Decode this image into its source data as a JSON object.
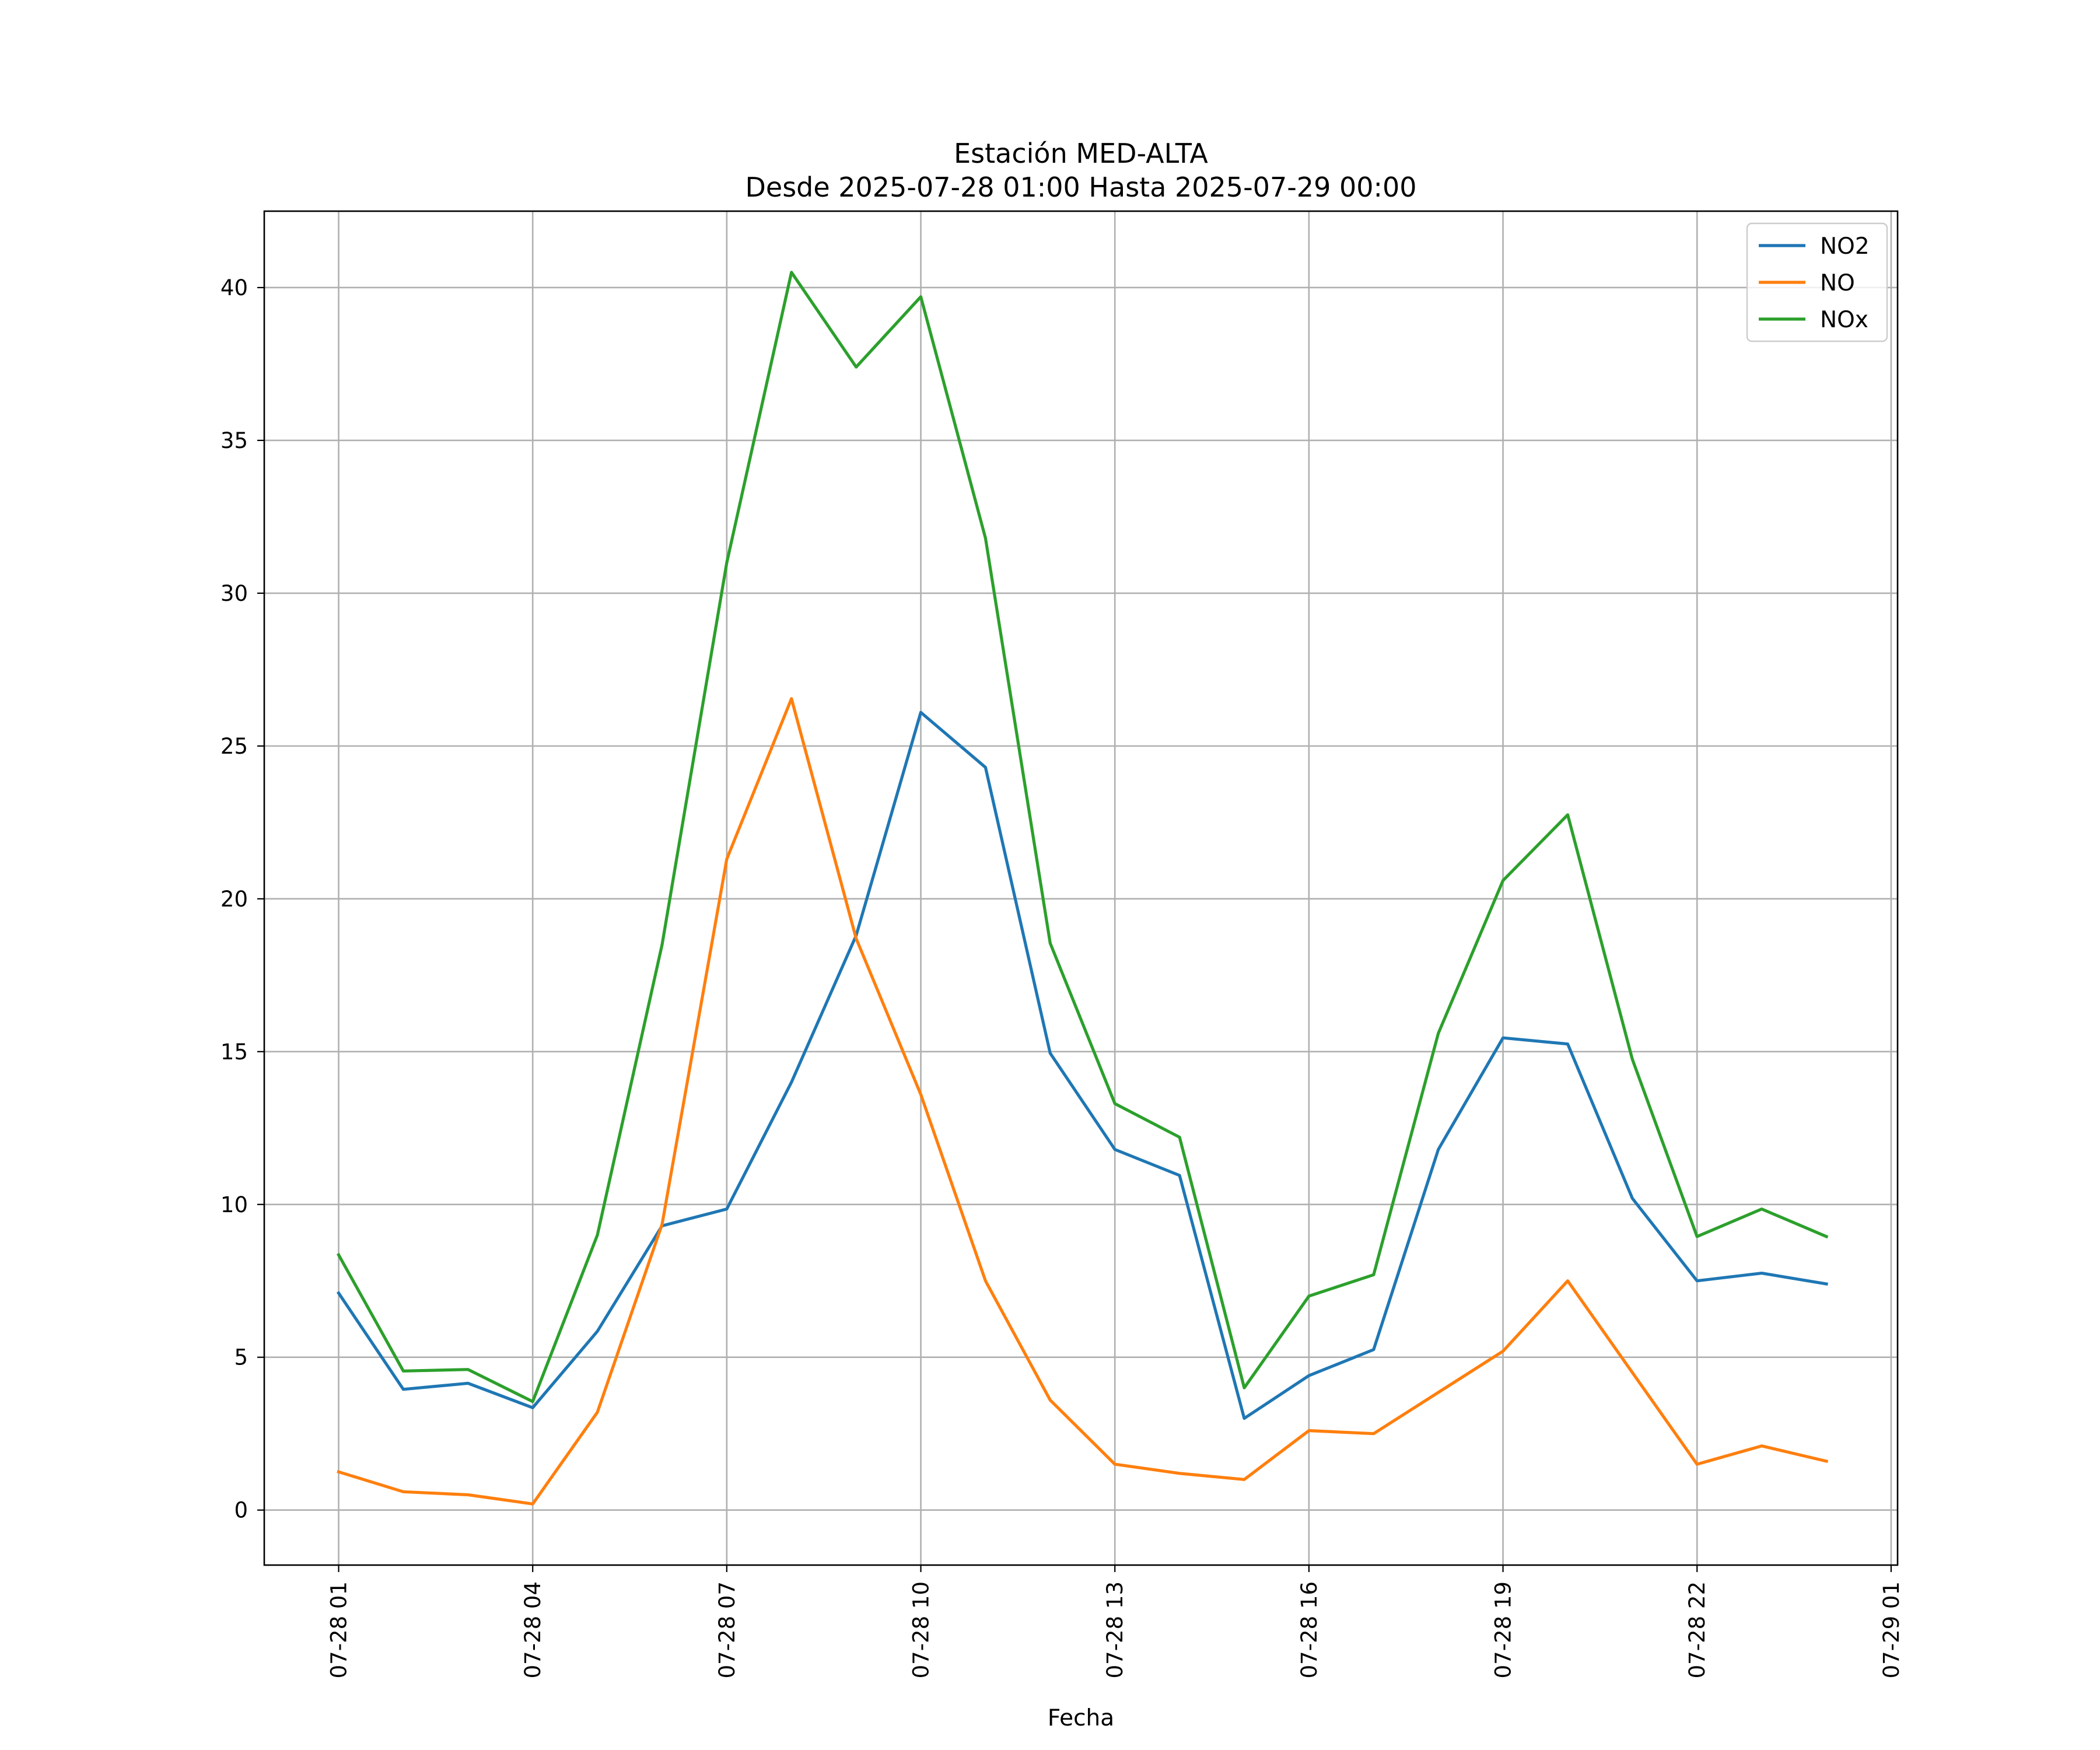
{
  "chart_data": {
    "type": "line",
    "title": "Estación MED-ALTA",
    "subtitle": "Desde 2025-07-28 01:00 Hasta 2025-07-29 00:00",
    "xlabel": "Fecha",
    "ylabel": "",
    "x_tick_labels": [
      "07-28 01",
      "07-28 04",
      "07-28 07",
      "07-28 10",
      "07-28 13",
      "07-28 16",
      "07-28 19",
      "07-28 22",
      "07-29 01"
    ],
    "y_tick_values": [
      0,
      5,
      10,
      15,
      20,
      25,
      30,
      35,
      40
    ],
    "x_hours": [
      1,
      2,
      3,
      4,
      5,
      6,
      7,
      8,
      9,
      10,
      11,
      12,
      13,
      14,
      15,
      16,
      17,
      18,
      19,
      20,
      21,
      22,
      23,
      24
    ],
    "xlim_hours": [
      -0.15,
      25.1
    ],
    "ylim": [
      -1.8,
      42.5
    ],
    "grid": true,
    "legend_position": "top-right",
    "series": [
      {
        "name": "NO2",
        "color": "#1f77b4",
        "values": [
          7.1,
          3.95,
          4.15,
          3.35,
          5.85,
          9.3,
          9.85,
          14.0,
          18.8,
          26.1,
          24.3,
          14.95,
          11.8,
          10.95,
          3.0,
          4.4,
          5.25,
          11.8,
          15.45,
          15.25,
          10.2,
          7.5,
          7.75,
          7.4
        ]
      },
      {
        "name": "NO",
        "color": "#ff7f0e",
        "values": [
          1.25,
          0.6,
          0.5,
          0.2,
          3.2,
          9.35,
          21.3,
          26.55,
          18.7,
          13.6,
          7.5,
          3.6,
          1.5,
          1.2,
          1.0,
          2.6,
          2.5,
          3.85,
          5.2,
          7.5,
          4.5,
          1.5,
          2.1,
          1.6
        ]
      },
      {
        "name": "NOx",
        "color": "#2ca02c",
        "values": [
          8.35,
          4.55,
          4.6,
          3.55,
          9.0,
          18.5,
          31.0,
          40.5,
          37.4,
          39.7,
          31.8,
          18.55,
          13.3,
          12.2,
          4.0,
          7.0,
          7.7,
          15.6,
          20.6,
          22.75,
          14.75,
          8.95,
          9.85,
          8.95
        ]
      }
    ]
  }
}
